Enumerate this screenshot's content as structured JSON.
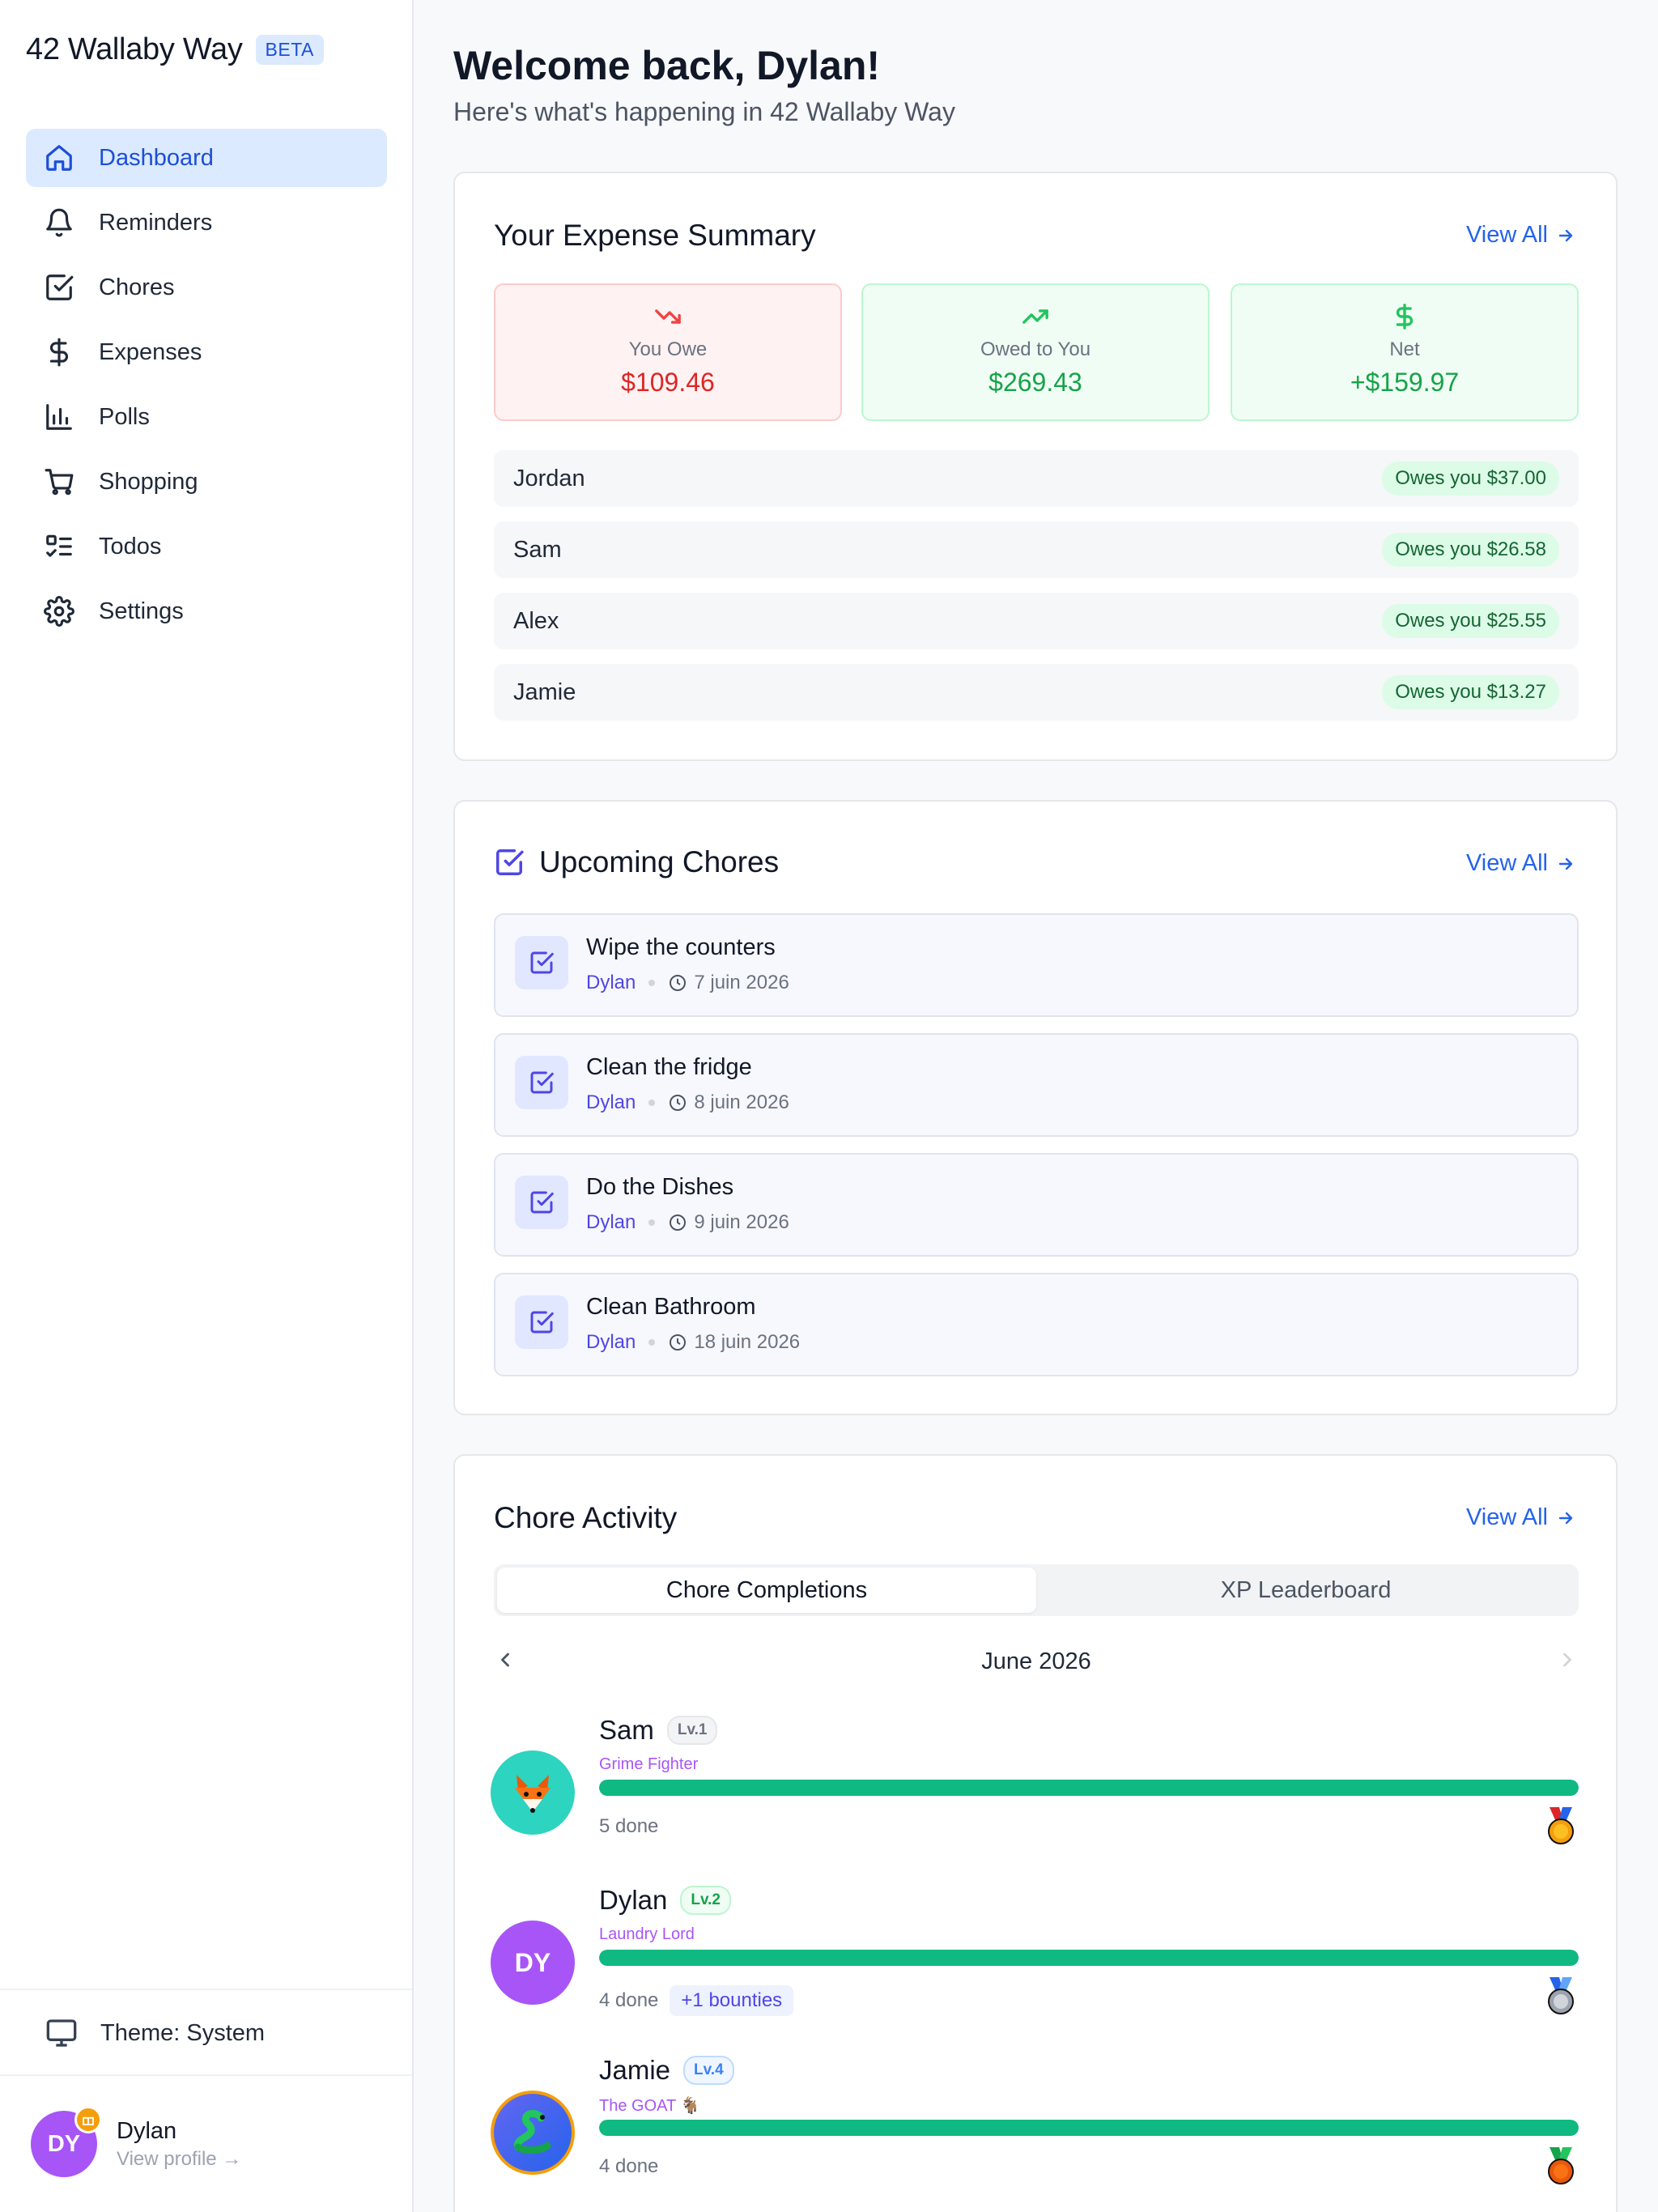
{
  "sidebar": {
    "brand": "42 Wallaby Way",
    "badge": "BETA",
    "items": [
      {
        "label": "Dashboard",
        "icon": "home-icon",
        "active": true
      },
      {
        "label": "Reminders",
        "icon": "bell-icon"
      },
      {
        "label": "Chores",
        "icon": "check-square-icon"
      },
      {
        "label": "Expenses",
        "icon": "dollar-icon"
      },
      {
        "label": "Polls",
        "icon": "bar-chart-icon"
      },
      {
        "label": "Shopping",
        "icon": "cart-icon"
      },
      {
        "label": "Todos",
        "icon": "list-checks-icon"
      },
      {
        "label": "Settings",
        "icon": "gear-icon"
      }
    ],
    "theme_label": "Theme: System",
    "user": {
      "initials": "DY",
      "name": "Dylan",
      "link": "View profile →"
    }
  },
  "header": {
    "welcome": "Welcome back, Dylan!",
    "subtitle": "Here's what's happening in 42 Wallaby Way"
  },
  "expenses": {
    "title": "Your Expense Summary",
    "view_all": "View All",
    "stats": [
      {
        "label": "You Owe",
        "value": "$109.46",
        "color": "#dc2626"
      },
      {
        "label": "Owed to You",
        "value": "$269.43",
        "color": "#16a34a"
      },
      {
        "label": "Net",
        "value": "+$159.97",
        "color": "#16a34a"
      }
    ],
    "balances": [
      {
        "name": "Jordan",
        "status": "Owes you $37.00"
      },
      {
        "name": "Sam",
        "status": "Owes you $26.58"
      },
      {
        "name": "Alex",
        "status": "Owes you $25.55"
      },
      {
        "name": "Jamie",
        "status": "Owes you $13.27"
      }
    ]
  },
  "chores": {
    "title": "Upcoming Chores",
    "view_all": "View All",
    "items": [
      {
        "title": "Wipe the counters",
        "assignee": "Dylan",
        "date": "7 juin 2026"
      },
      {
        "title": "Clean the fridge",
        "assignee": "Dylan",
        "date": "8 juin 2026"
      },
      {
        "title": "Do the Dishes",
        "assignee": "Dylan",
        "date": "9 juin 2026"
      },
      {
        "title": "Clean Bathroom",
        "assignee": "Dylan",
        "date": "18 juin 2026"
      }
    ]
  },
  "activity": {
    "title": "Chore Activity",
    "view_all": "View All",
    "tabs": [
      "Chore Completions",
      "XP Leaderboard"
    ],
    "active_tab": 0,
    "month": "June 2026",
    "leaders": [
      {
        "name": "Sam",
        "level": "Lv.1",
        "title": "Grime Fighter",
        "done": "5 done",
        "progress": 1.0,
        "avatar": "fox-emoji",
        "medal": "gold-medal-icon",
        "level_color": "#6b7280"
      },
      {
        "name": "Dylan",
        "level": "Lv.2",
        "title": "Laundry Lord",
        "done": "4 done",
        "bounties": "+1 bounties",
        "progress": 1.0,
        "initials": "DY",
        "medal": "silver-medal-icon",
        "level_color": "#16a34a"
      },
      {
        "name": "Jamie",
        "level": "Lv.4",
        "title": "The GOAT 🐐",
        "done": "4 done",
        "progress": 1.0,
        "avatar": "snake-emoji",
        "medal": "bronze-medal-icon",
        "level_color": "#3b82f6"
      }
    ]
  }
}
